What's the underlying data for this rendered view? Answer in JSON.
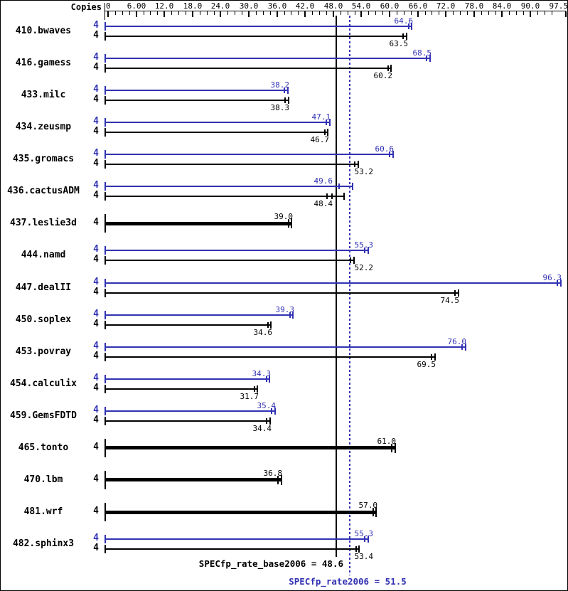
{
  "header": {
    "copies_label": "Copies"
  },
  "chart_data": {
    "type": "bar",
    "orientation": "horizontal",
    "grid": false,
    "axis": {
      "min": 0,
      "max": 97.5,
      "minor_step": 1.5,
      "major_ticks": [
        {
          "v": 0,
          "label": "0"
        },
        {
          "v": 6,
          "label": "6.00"
        },
        {
          "v": 12,
          "label": "12.0"
        },
        {
          "v": 18,
          "label": "18.0"
        },
        {
          "v": 24,
          "label": "24.0"
        },
        {
          "v": 30,
          "label": "30.0"
        },
        {
          "v": 36,
          "label": "36.0"
        },
        {
          "v": 42,
          "label": "42.0"
        },
        {
          "v": 48,
          "label": "48.0"
        },
        {
          "v": 54,
          "label": "54.0"
        },
        {
          "v": 60,
          "label": "60.0"
        },
        {
          "v": 66,
          "label": "66.0"
        },
        {
          "v": 72,
          "label": "72.0"
        },
        {
          "v": 78,
          "label": "78.0"
        },
        {
          "v": 84,
          "label": "84.0"
        },
        {
          "v": 90,
          "label": "90.0"
        },
        {
          "v": 97.5,
          "label": "97.5"
        }
      ]
    },
    "colors": {
      "peak": "#3232b4",
      "base": "#000000"
    },
    "benchmarks": [
      {
        "name": "410.bwaves",
        "copies": 4,
        "peak": 64.6,
        "peak_text": "64.6",
        "base": 63.5,
        "base_text": "63.5"
      },
      {
        "name": "416.gamess",
        "copies": 4,
        "peak": 68.5,
        "peak_text": "68.5",
        "base": 60.2,
        "base_text": "60.2"
      },
      {
        "name": "433.milc",
        "copies": 4,
        "peak": 38.2,
        "peak_text": "38.2",
        "base": 38.3,
        "base_text": "38.3"
      },
      {
        "name": "434.zeusmp",
        "copies": 4,
        "peak": 47.1,
        "peak_text": "47.1",
        "base": 46.7,
        "base_text": "46.7"
      },
      {
        "name": "435.gromacs",
        "copies": 4,
        "peak": 60.6,
        "peak_text": "60.6",
        "base": 53.2,
        "base_text": "53.2"
      },
      {
        "name": "436.cactusADM",
        "copies": 4,
        "peak": 49.6,
        "peak_text": "49.6",
        "base": 48.4,
        "base_text": "48.4",
        "peak_run_ticks": [
          49.3
        ],
        "peak_line_end": 52.0,
        "base_run_ticks": [
          46.6,
          47.8
        ],
        "base_line_end": 50.1
      },
      {
        "name": "437.leslie3d",
        "copies": 4,
        "peak": null,
        "peak_text": null,
        "base": 39.0,
        "base_text": "39.0"
      },
      {
        "name": "444.namd",
        "copies": 4,
        "peak": 55.3,
        "peak_text": "55.3",
        "base": 52.2,
        "base_text": "52.2"
      },
      {
        "name": "447.dealII",
        "copies": 4,
        "peak": 96.3,
        "peak_text": "96.3",
        "base": 74.5,
        "base_text": "74.5"
      },
      {
        "name": "450.soplex",
        "copies": 4,
        "peak": 39.3,
        "peak_text": "39.3",
        "base": 34.6,
        "base_text": "34.6"
      },
      {
        "name": "453.povray",
        "copies": 4,
        "peak": 76.0,
        "peak_text": "76.0",
        "base": 69.5,
        "base_text": "69.5"
      },
      {
        "name": "454.calculix",
        "copies": 4,
        "peak": 34.3,
        "peak_text": "34.3",
        "base": 31.7,
        "base_text": "31.7"
      },
      {
        "name": "459.GemsFDTD",
        "copies": 4,
        "peak": 35.4,
        "peak_text": "35.4",
        "base": 34.4,
        "base_text": "34.4"
      },
      {
        "name": "465.tonto",
        "copies": 4,
        "peak": null,
        "peak_text": null,
        "base": 61.0,
        "base_text": "61.0"
      },
      {
        "name": "470.lbm",
        "copies": 4,
        "peak": null,
        "peak_text": null,
        "base": 36.8,
        "base_text": "36.8"
      },
      {
        "name": "481.wrf",
        "copies": 4,
        "peak": null,
        "peak_text": null,
        "base": 57.0,
        "base_text": "57.0"
      },
      {
        "name": "482.sphinx3",
        "copies": 4,
        "peak": 55.3,
        "peak_text": "55.3",
        "base": 53.4,
        "base_text": "53.4"
      }
    ],
    "means": {
      "base": {
        "value": 48.6,
        "label": "SPECfp_rate_base2006 = 48.6",
        "line_style": "solid"
      },
      "peak": {
        "value": 51.5,
        "label": "SPECfp_rate2006 = 51.5",
        "line_style": "dotted"
      }
    }
  }
}
